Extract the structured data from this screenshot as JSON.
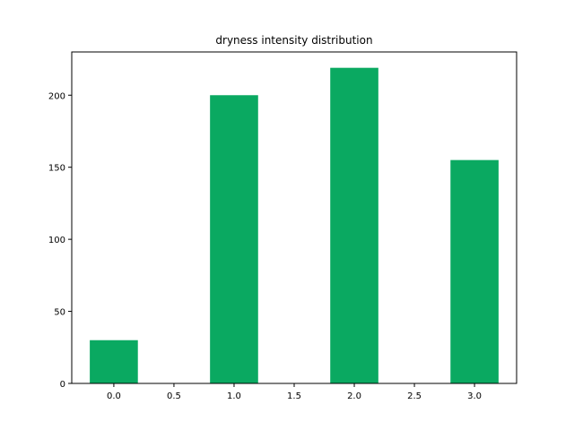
{
  "chart_data": {
    "type": "bar",
    "title": "dryness intensity distribution",
    "xlabel": "",
    "ylabel": "",
    "x": [
      0,
      1,
      2,
      3
    ],
    "values": [
      30,
      200,
      219,
      155
    ],
    "bar_width": 0.4,
    "xlim": [
      -0.35,
      3.35
    ],
    "ylim": [
      0,
      230
    ],
    "xticks": [
      0.0,
      0.5,
      1.0,
      1.5,
      2.0,
      2.5,
      3.0
    ],
    "xtick_labels": [
      "0.0",
      "0.5",
      "1.0",
      "1.5",
      "2.0",
      "2.5",
      "3.0"
    ],
    "yticks": [
      0,
      50,
      100,
      150,
      200
    ],
    "ytick_labels": [
      "0",
      "50",
      "100",
      "150",
      "200"
    ],
    "bar_color": "#0aa961",
    "grid": false,
    "legend": "none"
  }
}
